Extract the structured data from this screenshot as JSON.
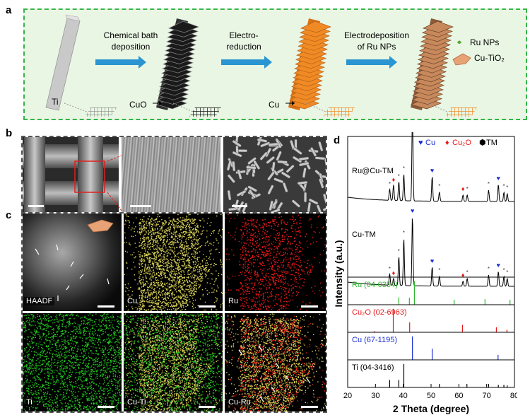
{
  "panel_labels": {
    "a": "a",
    "b": "b",
    "c": "c",
    "d": "d"
  },
  "schematic": {
    "step1": [
      "Chemical bath",
      "deposition"
    ],
    "step2": [
      "Electro-",
      "reduction"
    ],
    "step3": [
      "Electrodeposition",
      "of Ru NPs"
    ],
    "labels": {
      "ti": "Ti",
      "cuo": "CuO",
      "cu": "Cu"
    },
    "legend": {
      "ru": "Ru NPs",
      "cutio2": "Cu-TiO₂"
    },
    "colors": {
      "ti": "#bdbdbd",
      "cuo": "#1a1a1a",
      "cu": "#f08a24",
      "ru_sheet": "#c7895c",
      "arrow": "#2a95d0",
      "border": "#35b548"
    }
  },
  "maps": {
    "labels": [
      "HAADF",
      "Cu",
      "Ru",
      "Ti",
      "Cu-Ti",
      "Cu-Ru"
    ],
    "colors": {
      "cu": "#d6cf55",
      "ru": "#e81818",
      "ti": "#22c41f"
    }
  },
  "chart_data": {
    "type": "line",
    "xlabel": "2 Theta (degree)",
    "ylabel": "Intensity (a.u.)",
    "xlim": [
      20,
      80
    ],
    "xticks": [
      "20",
      "30",
      "40",
      "50",
      "60",
      "70",
      "80"
    ],
    "legend": [
      {
        "symbol": "♥",
        "label": "Cu",
        "color": "#1a2ed6"
      },
      {
        "symbol": "♦",
        "label": "Cu₂O",
        "color": "#e81818"
      },
      {
        "symbol": "⬢",
        "label": "TM",
        "color": "#000000"
      }
    ],
    "series": [
      {
        "name": "Ru@Cu-TM",
        "peaks": [
          {
            "x": 35.1,
            "h": 16
          },
          {
            "x": 36.5,
            "h": 22
          },
          {
            "x": 38.4,
            "h": 27
          },
          {
            "x": 40.2,
            "h": 38
          },
          {
            "x": 43.3,
            "h": 130
          },
          {
            "x": 50.4,
            "h": 35
          },
          {
            "x": 53.0,
            "h": 13
          },
          {
            "x": 61.5,
            "h": 9
          },
          {
            "x": 63.0,
            "h": 9
          },
          {
            "x": 70.7,
            "h": 16
          },
          {
            "x": 74.2,
            "h": 24
          },
          {
            "x": 76.2,
            "h": 13
          },
          {
            "x": 77.4,
            "h": 11
          }
        ]
      },
      {
        "name": "Cu-TM",
        "peaks": [
          {
            "x": 35.1,
            "h": 16
          },
          {
            "x": 36.5,
            "h": 10
          },
          {
            "x": 38.4,
            "h": 41
          },
          {
            "x": 40.2,
            "h": 67
          },
          {
            "x": 43.3,
            "h": 98
          },
          {
            "x": 50.4,
            "h": 27
          },
          {
            "x": 53.0,
            "h": 14
          },
          {
            "x": 61.5,
            "h": 7
          },
          {
            "x": 63.0,
            "h": 11
          },
          {
            "x": 70.7,
            "h": 16
          },
          {
            "x": 74.2,
            "h": 21
          },
          {
            "x": 76.2,
            "h": 14
          },
          {
            "x": 77.4,
            "h": 11
          }
        ]
      }
    ],
    "references": [
      {
        "name": "Ru (04-0354)",
        "color": "#2fb52f",
        "lines": [
          {
            "x": 38.4,
            "h": 0.3
          },
          {
            "x": 42.2,
            "h": 0.28
          },
          {
            "x": 44.0,
            "h": 0.95
          },
          {
            "x": 58.3,
            "h": 0.2
          },
          {
            "x": 69.4,
            "h": 0.22
          },
          {
            "x": 78.4,
            "h": 0.2
          }
        ]
      },
      {
        "name": "Cu₂O (02-6963)",
        "color": "#e81818",
        "lines": [
          {
            "x": 29.6,
            "h": 0.05
          },
          {
            "x": 36.4,
            "h": 0.95
          },
          {
            "x": 42.3,
            "h": 0.4
          },
          {
            "x": 61.3,
            "h": 0.3
          },
          {
            "x": 73.5,
            "h": 0.2
          },
          {
            "x": 77.3,
            "h": 0.1
          }
        ]
      },
      {
        "name": "Cu (67-1195)",
        "color": "#1a2ed6",
        "lines": [
          {
            "x": 43.3,
            "h": 0.95
          },
          {
            "x": 50.4,
            "h": 0.45
          },
          {
            "x": 74.1,
            "h": 0.2
          }
        ]
      },
      {
        "name": "Ti  (04-3416)",
        "color": "#000000",
        "lines": [
          {
            "x": 35.1,
            "h": 0.3
          },
          {
            "x": 38.4,
            "h": 0.3
          },
          {
            "x": 40.2,
            "h": 0.95
          },
          {
            "x": 53.0,
            "h": 0.14
          },
          {
            "x": 62.9,
            "h": 0.14
          },
          {
            "x": 70.7,
            "h": 0.14
          },
          {
            "x": 74.2,
            "h": 0.1
          },
          {
            "x": 76.2,
            "h": 0.1
          },
          {
            "x": 77.4,
            "h": 0.08
          }
        ]
      }
    ],
    "markers": {
      "cu": "♥",
      "cu2o": "♦",
      "tm": "*"
    }
  }
}
